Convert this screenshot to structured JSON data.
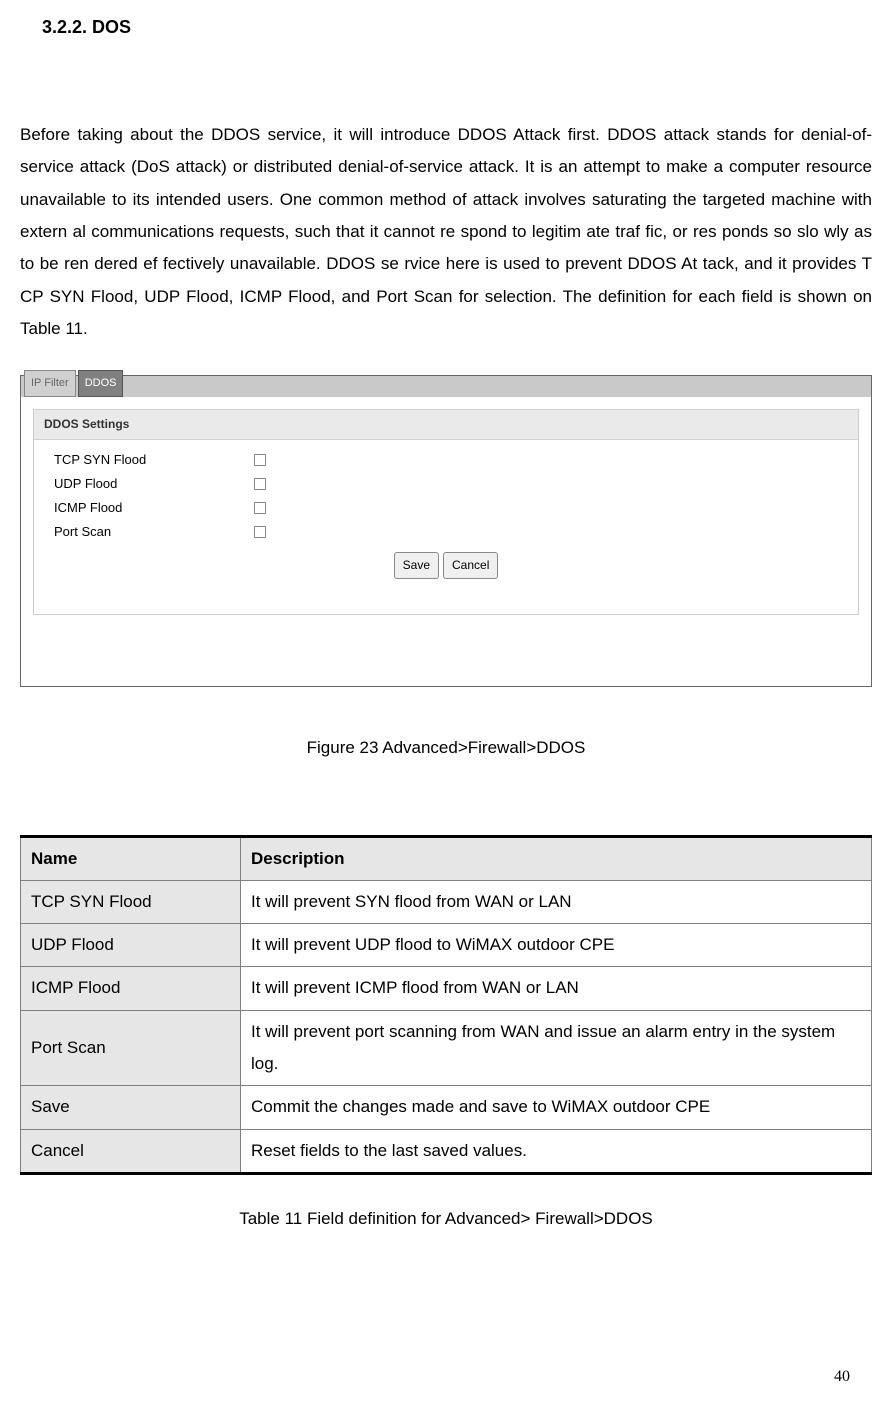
{
  "heading": "3.2.2.  DOS",
  "body_text": "Before taking about the DDOS service, it will introduce DDOS Attack first. DDOS attack stands for denial-of-service attack (DoS attack) or distributed denial-of-service attack. It is an attempt to make a computer resource unavailable to its intended users. One common method of attack involves saturating the targeted machine with extern al communications requests, such that it cannot re spond to legitim  ate traf fic, or res  ponds  so slo wly as   to be ren  dered ef fectively unavailable. DDOS se rvice here  is used to prevent DDOS At tack, and it provides T CP SYN Flood, UDP  Flood, ICMP  Flood, and Port Scan for    selection. The definition for each field is shown on Table 11.",
  "tabs": {
    "inactive": "IP Filter",
    "active": "DDOS"
  },
  "panel_header": "DDOS Settings",
  "settings": [
    "TCP SYN Flood",
    "UDP Flood",
    "ICMP Flood",
    "Port Scan"
  ],
  "buttons": {
    "save": "Save",
    "cancel": "Cancel"
  },
  "figure_caption": "Figure 23  Advanced>Firewall>DDOS",
  "table": {
    "headers": [
      "Name",
      "Description"
    ],
    "rows": [
      [
        "TCP SYN Flood",
        "It will prevent SYN flood from WAN or LAN"
      ],
      [
        "UDP Flood",
        "It will prevent UDP flood to WiMAX outdoor CPE"
      ],
      [
        "ICMP Flood",
        "It will prevent ICMP flood from WAN or LAN"
      ],
      [
        "Port Scan",
        "It will prevent port scanning from WAN and issue an alarm entry in the system log."
      ],
      [
        "Save",
        "Commit the changes made and save to WiMAX outdoor CPE"
      ],
      [
        "Cancel",
        "Reset fields to the last saved values."
      ]
    ]
  },
  "table_caption": "Table 11    Field definition for Advanced> Firewall>DDOS",
  "page_number": "40"
}
